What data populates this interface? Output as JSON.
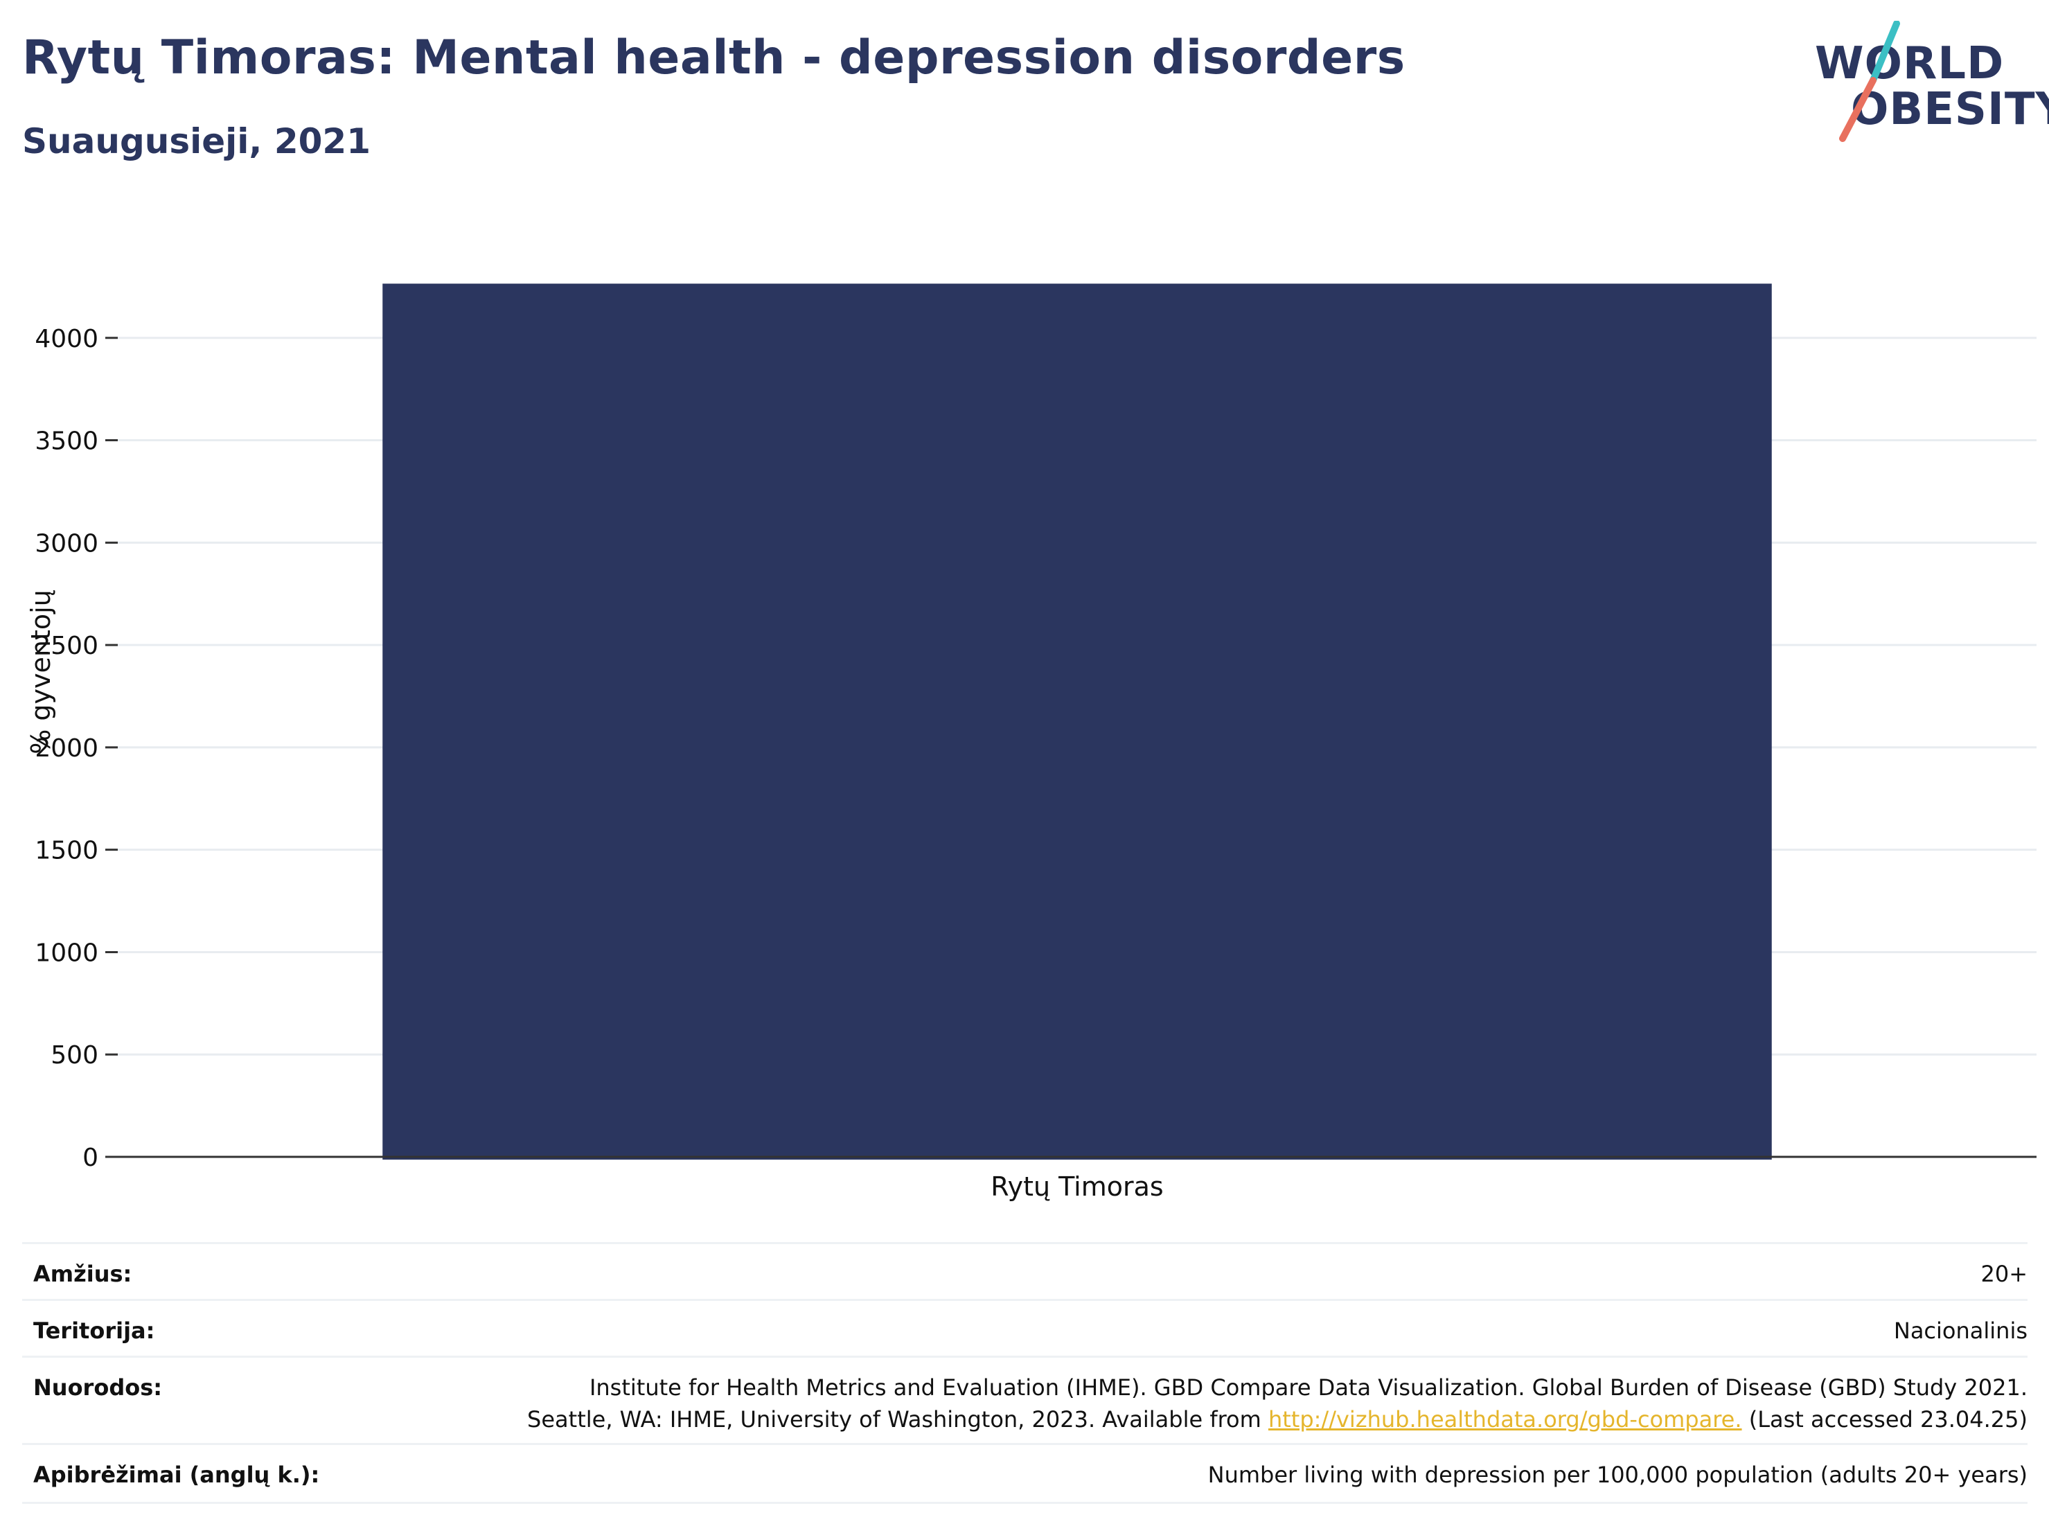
{
  "header": {
    "title": "Rytų Timoras: Mental health - depression disorders",
    "subtitle": "Suaugusieji, 2021"
  },
  "logo": {
    "line1": "WORLD",
    "line2": "OBESITY",
    "slash_colors": [
      "#3bbfc4",
      "#e8705e"
    ]
  },
  "chart_data": {
    "type": "bar",
    "categories": [
      "Rytų Timoras"
    ],
    "values": [
      4265
    ],
    "ylabel": "% gyventojų",
    "xlabel": "",
    "ylim": [
      0,
      4500
    ],
    "yticks": [
      0,
      500,
      1000,
      1500,
      2000,
      2500,
      3000,
      3500,
      4000
    ],
    "grid": true,
    "bar_color": "#2b365f"
  },
  "meta": {
    "age_label": "Amžius:",
    "age_value": "20+",
    "territory_label": "Teritorija:",
    "territory_value": "Nacionalinis",
    "refs_label": "Nuorodos:",
    "refs_line1": "Institute for Health Metrics and Evaluation (IHME). GBD Compare Data Visualization. Global Burden of Disease (GBD) Study 2021.",
    "refs_line2_pre": "Seattle, WA: IHME, University of Washington, 2023. Available from ",
    "refs_link": "http://vizhub.healthdata.org/gbd-compare.",
    "refs_line2_post": " (Last accessed 23.04.25)",
    "def_label": "Apibrėžimai (anglų k.):",
    "def_value": "Number living with depression per 100,000 population (adults 20+ years)"
  }
}
